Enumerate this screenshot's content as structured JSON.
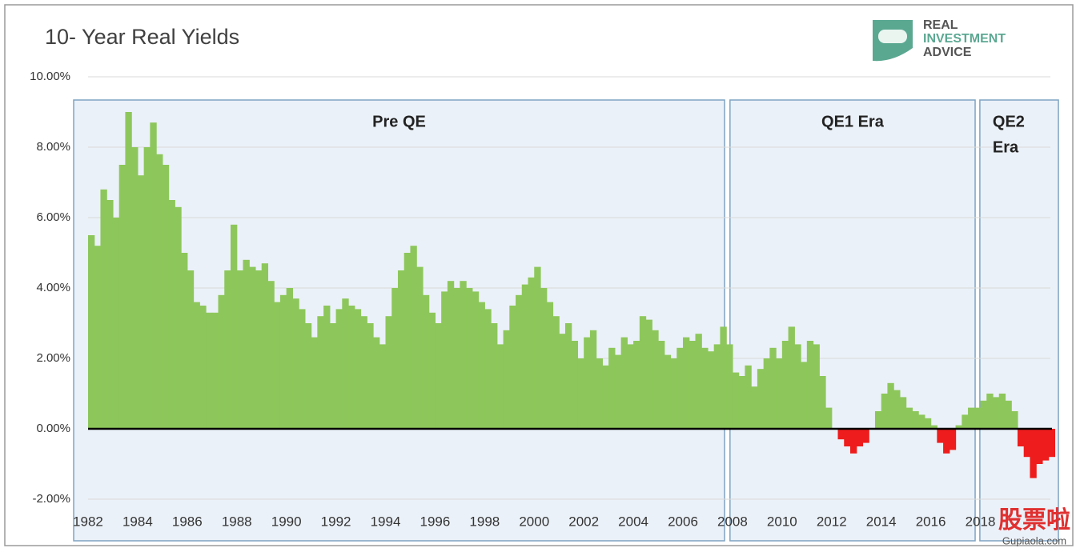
{
  "chart_data": {
    "type": "bar",
    "title": "10- Year Real Yields",
    "logo": [
      "REAL",
      "INVESTMENT",
      "ADVICE"
    ],
    "watermark": [
      "股票啦",
      "Gupiaola.com"
    ],
    "positive_color": "#8dc75b",
    "negative_color": "#ee1c1c",
    "grid": true,
    "xlim": [
      1981.4,
      2021.2
    ],
    "ylim": [
      -2.4,
      10
    ],
    "yticks": [
      {
        "value": 10,
        "label": "10.00%"
      },
      {
        "value": 8,
        "label": "8.00%"
      },
      {
        "value": 6,
        "label": "6.00%"
      },
      {
        "value": 4,
        "label": "4.00%"
      },
      {
        "value": 2,
        "label": "2.00%"
      },
      {
        "value": 0,
        "label": "0.00%"
      },
      {
        "value": -2,
        "label": "-2.00%"
      }
    ],
    "xticks": [
      1982,
      1984,
      1986,
      1988,
      1990,
      1992,
      1994,
      1996,
      1998,
      2000,
      2002,
      2004,
      2006,
      2008,
      2010,
      2012,
      2014,
      2016,
      2018
    ],
    "regions": [
      {
        "label": [
          "Pre QE"
        ],
        "start": 1981.42,
        "end": 2007.68
      },
      {
        "label": [
          "QE1 Era"
        ],
        "start": 2007.9,
        "end": 2017.79
      },
      {
        "label": [
          "QE2",
          "Era"
        ],
        "start": 2017.98,
        "end": 2021.15
      }
    ],
    "x": [
      1982,
      1982.25,
      1982.5,
      1982.75,
      1983,
      1983.25,
      1983.5,
      1983.75,
      1984,
      1984.25,
      1984.5,
      1984.75,
      1985,
      1985.25,
      1985.5,
      1985.75,
      1986,
      1986.25,
      1986.5,
      1986.75,
      1987,
      1987.25,
      1987.5,
      1987.75,
      1988,
      1988.25,
      1988.5,
      1988.75,
      1989,
      1989.25,
      1989.5,
      1989.75,
      1990,
      1990.25,
      1990.5,
      1990.75,
      1991,
      1991.25,
      1991.5,
      1991.75,
      1992,
      1992.25,
      1992.5,
      1992.75,
      1993,
      1993.25,
      1993.5,
      1993.75,
      1994,
      1994.25,
      1994.5,
      1994.75,
      1995,
      1995.25,
      1995.5,
      1995.75,
      1996,
      1996.25,
      1996.5,
      1996.75,
      1997,
      1997.25,
      1997.5,
      1997.75,
      1998,
      1998.25,
      1998.5,
      1998.75,
      1999,
      1999.25,
      1999.5,
      1999.75,
      2000,
      2000.25,
      2000.5,
      2000.75,
      2001,
      2001.25,
      2001.5,
      2001.75,
      2002,
      2002.25,
      2002.5,
      2002.75,
      2003,
      2003.25,
      2003.5,
      2003.75,
      2004,
      2004.25,
      2004.5,
      2004.75,
      2005,
      2005.25,
      2005.5,
      2005.75,
      2006,
      2006.25,
      2006.5,
      2006.75,
      2007,
      2007.25,
      2007.5,
      2007.75,
      2008,
      2008.25,
      2008.5,
      2008.75,
      2009,
      2009.25,
      2009.5,
      2009.75,
      2010,
      2010.25,
      2010.5,
      2010.75,
      2011,
      2011.25,
      2011.5,
      2011.75,
      2012,
      2012.25,
      2012.5,
      2012.75,
      2013,
      2013.25,
      2013.5,
      2013.75,
      2014,
      2014.25,
      2014.5,
      2014.75,
      2015,
      2015.25,
      2015.5,
      2015.75,
      2016,
      2016.25,
      2016.5,
      2016.75,
      2017,
      2017.25,
      2017.5,
      2017.75,
      2018,
      2018.25,
      2018.5,
      2018.75,
      2019,
      2019.25,
      2019.5,
      2019.75,
      2020,
      2020.25,
      2020.5,
      2020.75
    ],
    "values": [
      5.5,
      5.2,
      6.8,
      6.5,
      6.0,
      7.5,
      9.0,
      8.0,
      7.2,
      8.0,
      8.7,
      7.8,
      7.5,
      6.5,
      6.3,
      5.0,
      4.5,
      3.6,
      3.5,
      3.3,
      3.3,
      3.8,
      4.5,
      5.8,
      4.5,
      4.8,
      4.6,
      4.5,
      4.7,
      4.2,
      3.6,
      3.8,
      4.0,
      3.7,
      3.4,
      3.0,
      2.6,
      3.2,
      3.5,
      3.0,
      3.4,
      3.7,
      3.5,
      3.4,
      3.2,
      3.0,
      2.6,
      2.4,
      3.2,
      4.0,
      4.5,
      5.0,
      5.2,
      4.6,
      3.8,
      3.3,
      3.0,
      3.9,
      4.2,
      4.0,
      4.2,
      4.0,
      3.9,
      3.6,
      3.4,
      3.0,
      2.4,
      2.8,
      3.5,
      3.8,
      4.1,
      4.3,
      4.6,
      4.0,
      3.6,
      3.2,
      2.7,
      3.0,
      2.5,
      2.0,
      2.6,
      2.8,
      2.0,
      1.8,
      2.3,
      2.1,
      2.6,
      2.4,
      2.5,
      3.2,
      3.1,
      2.8,
      2.5,
      2.1,
      2.0,
      2.3,
      2.6,
      2.5,
      2.7,
      2.3,
      2.2,
      2.4,
      2.9,
      2.4,
      1.6,
      1.5,
      1.8,
      1.2,
      1.7,
      2.0,
      2.3,
      2.0,
      2.5,
      2.9,
      2.4,
      1.9,
      2.5,
      2.4,
      1.5,
      0.6,
      0.0,
      -0.3,
      -0.5,
      -0.7,
      -0.5,
      -0.4,
      0.0,
      0.5,
      1.0,
      1.3,
      1.1,
      0.9,
      0.6,
      0.5,
      0.4,
      0.3,
      0.1,
      -0.4,
      -0.7,
      -0.6,
      0.1,
      0.4,
      0.6,
      0.6,
      0.8,
      1.0,
      0.9,
      1.0,
      0.8,
      0.5,
      -0.5,
      -0.8,
      -1.4,
      -1.0,
      -0.9,
      -0.8
    ]
  }
}
